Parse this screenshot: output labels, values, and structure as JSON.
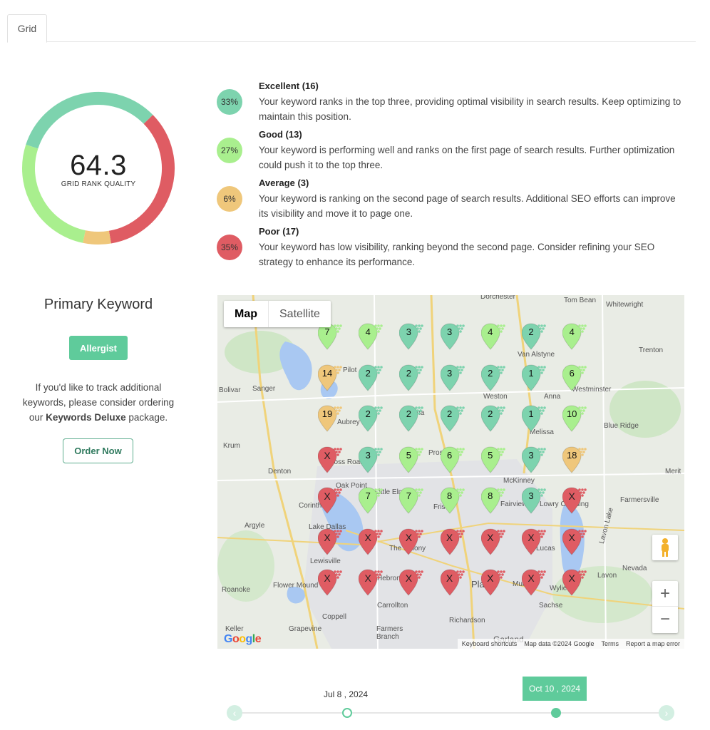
{
  "tabs": [
    {
      "label": "Grid"
    }
  ],
  "summary": {
    "score": "64.3",
    "score_label": "GRID RANK QUALITY",
    "segments": [
      {
        "name": "Excellent",
        "percent": 33,
        "color": "#7dd3ae"
      },
      {
        "name": "Poor",
        "percent": 35,
        "color": "#df5c63"
      },
      {
        "name": "Average",
        "percent": 6,
        "color": "#efc77b"
      },
      {
        "name": "Good",
        "percent": 27,
        "color": "#a9ef8e"
      }
    ]
  },
  "legend": [
    {
      "badge": "33%",
      "title": "Excellent (16)",
      "desc": "Your keyword ranks in the top three, providing optimal visibility in search results. Keep optimizing to maintain this position.",
      "color": "#7dd3ae"
    },
    {
      "badge": "27%",
      "title": "Good (13)",
      "desc": "Your keyword is performing well and ranks on the first page of search results. Further optimization could push it to the top three.",
      "color": "#a9ef8e"
    },
    {
      "badge": "6%",
      "title": "Average (3)",
      "desc": "Your keyword is ranking on the second page of search results. Additional SEO efforts can improve its visibility and move it to page one.",
      "color": "#efc77b"
    },
    {
      "badge": "35%",
      "title": "Poor (17)",
      "desc": "Your keyword has low visibility, ranking beyond the second page. Consider refining your SEO strategy to enhance its performance.",
      "color": "#df5c63"
    }
  ],
  "left_panel": {
    "title": "Primary Keyword",
    "keyword": "Allergist",
    "note_prefix": "If you'd like to track additional keywords, please consider ordering our ",
    "note_bold": "Keywords Deluxe",
    "note_suffix": " package.",
    "order_button": "Order Now"
  },
  "map": {
    "type_map": "Map",
    "type_satellite": "Satellite",
    "zoom_in": "+",
    "zoom_out": "−",
    "footer_shortcuts": "Keyboard shortcuts",
    "footer_data": "Map data ©2024 Google",
    "footer_terms": "Terms",
    "footer_report": "Report a map error",
    "google": "Google",
    "places": [
      "Tom Bean",
      "Whitewright",
      "Van Alstyne",
      "Trenton",
      "Bolivar",
      "Sanger",
      "Pilot",
      "Weston",
      "Anna",
      "Westminster",
      "Aubrey",
      "Melissa",
      "Blue Ridge",
      "Krum",
      "Denton",
      "McKinney",
      "Merit",
      "Corinth",
      "Frisco",
      "Fairview",
      "Lowry Crossing",
      "Farmersville",
      "Argyle",
      "Lake Dallas",
      "The Colony",
      "Lucas",
      "Lavon Lake",
      "Lewisville",
      "Flower Mound",
      "Hebron",
      "Plano",
      "Murphy",
      "Wylie",
      "Lavon",
      "Nevada",
      "Roanoke",
      "Carrollton",
      "Sachse",
      "Coppell",
      "Richardson",
      "Keller",
      "Grapevine",
      "Farmers Branch",
      "Garland",
      "Celina",
      "Prosper",
      "Oak Point",
      "Little Elm",
      "Cross Roads",
      "Dorchester"
    ],
    "grid": [
      [
        "7",
        "4",
        "3",
        "3",
        "4",
        "2",
        "4"
      ],
      [
        "14",
        "2",
        "2",
        "3",
        "2",
        "1",
        "6"
      ],
      [
        "19",
        "2",
        "2",
        "2",
        "2",
        "1",
        "10"
      ],
      [
        "X",
        "3",
        "5",
        "6",
        "5",
        "3",
        "18"
      ],
      [
        "X",
        "7",
        "7",
        "8",
        "8",
        "3",
        "X"
      ],
      [
        "X",
        "X",
        "X",
        "X",
        "X",
        "X",
        "X"
      ],
      [
        "X",
        "X",
        "X",
        "X",
        "X",
        "X",
        "X"
      ]
    ]
  },
  "timeline": {
    "start_label": "Jul 8 , 2024",
    "active_label": "Oct 10 , 2024",
    "prev": "‹",
    "next": "›"
  },
  "colors": {
    "excellent": "#7dd3ae",
    "good": "#a9ef8e",
    "average": "#efc77b",
    "poor": "#df5c63",
    "accent": "#5fcb9b"
  }
}
